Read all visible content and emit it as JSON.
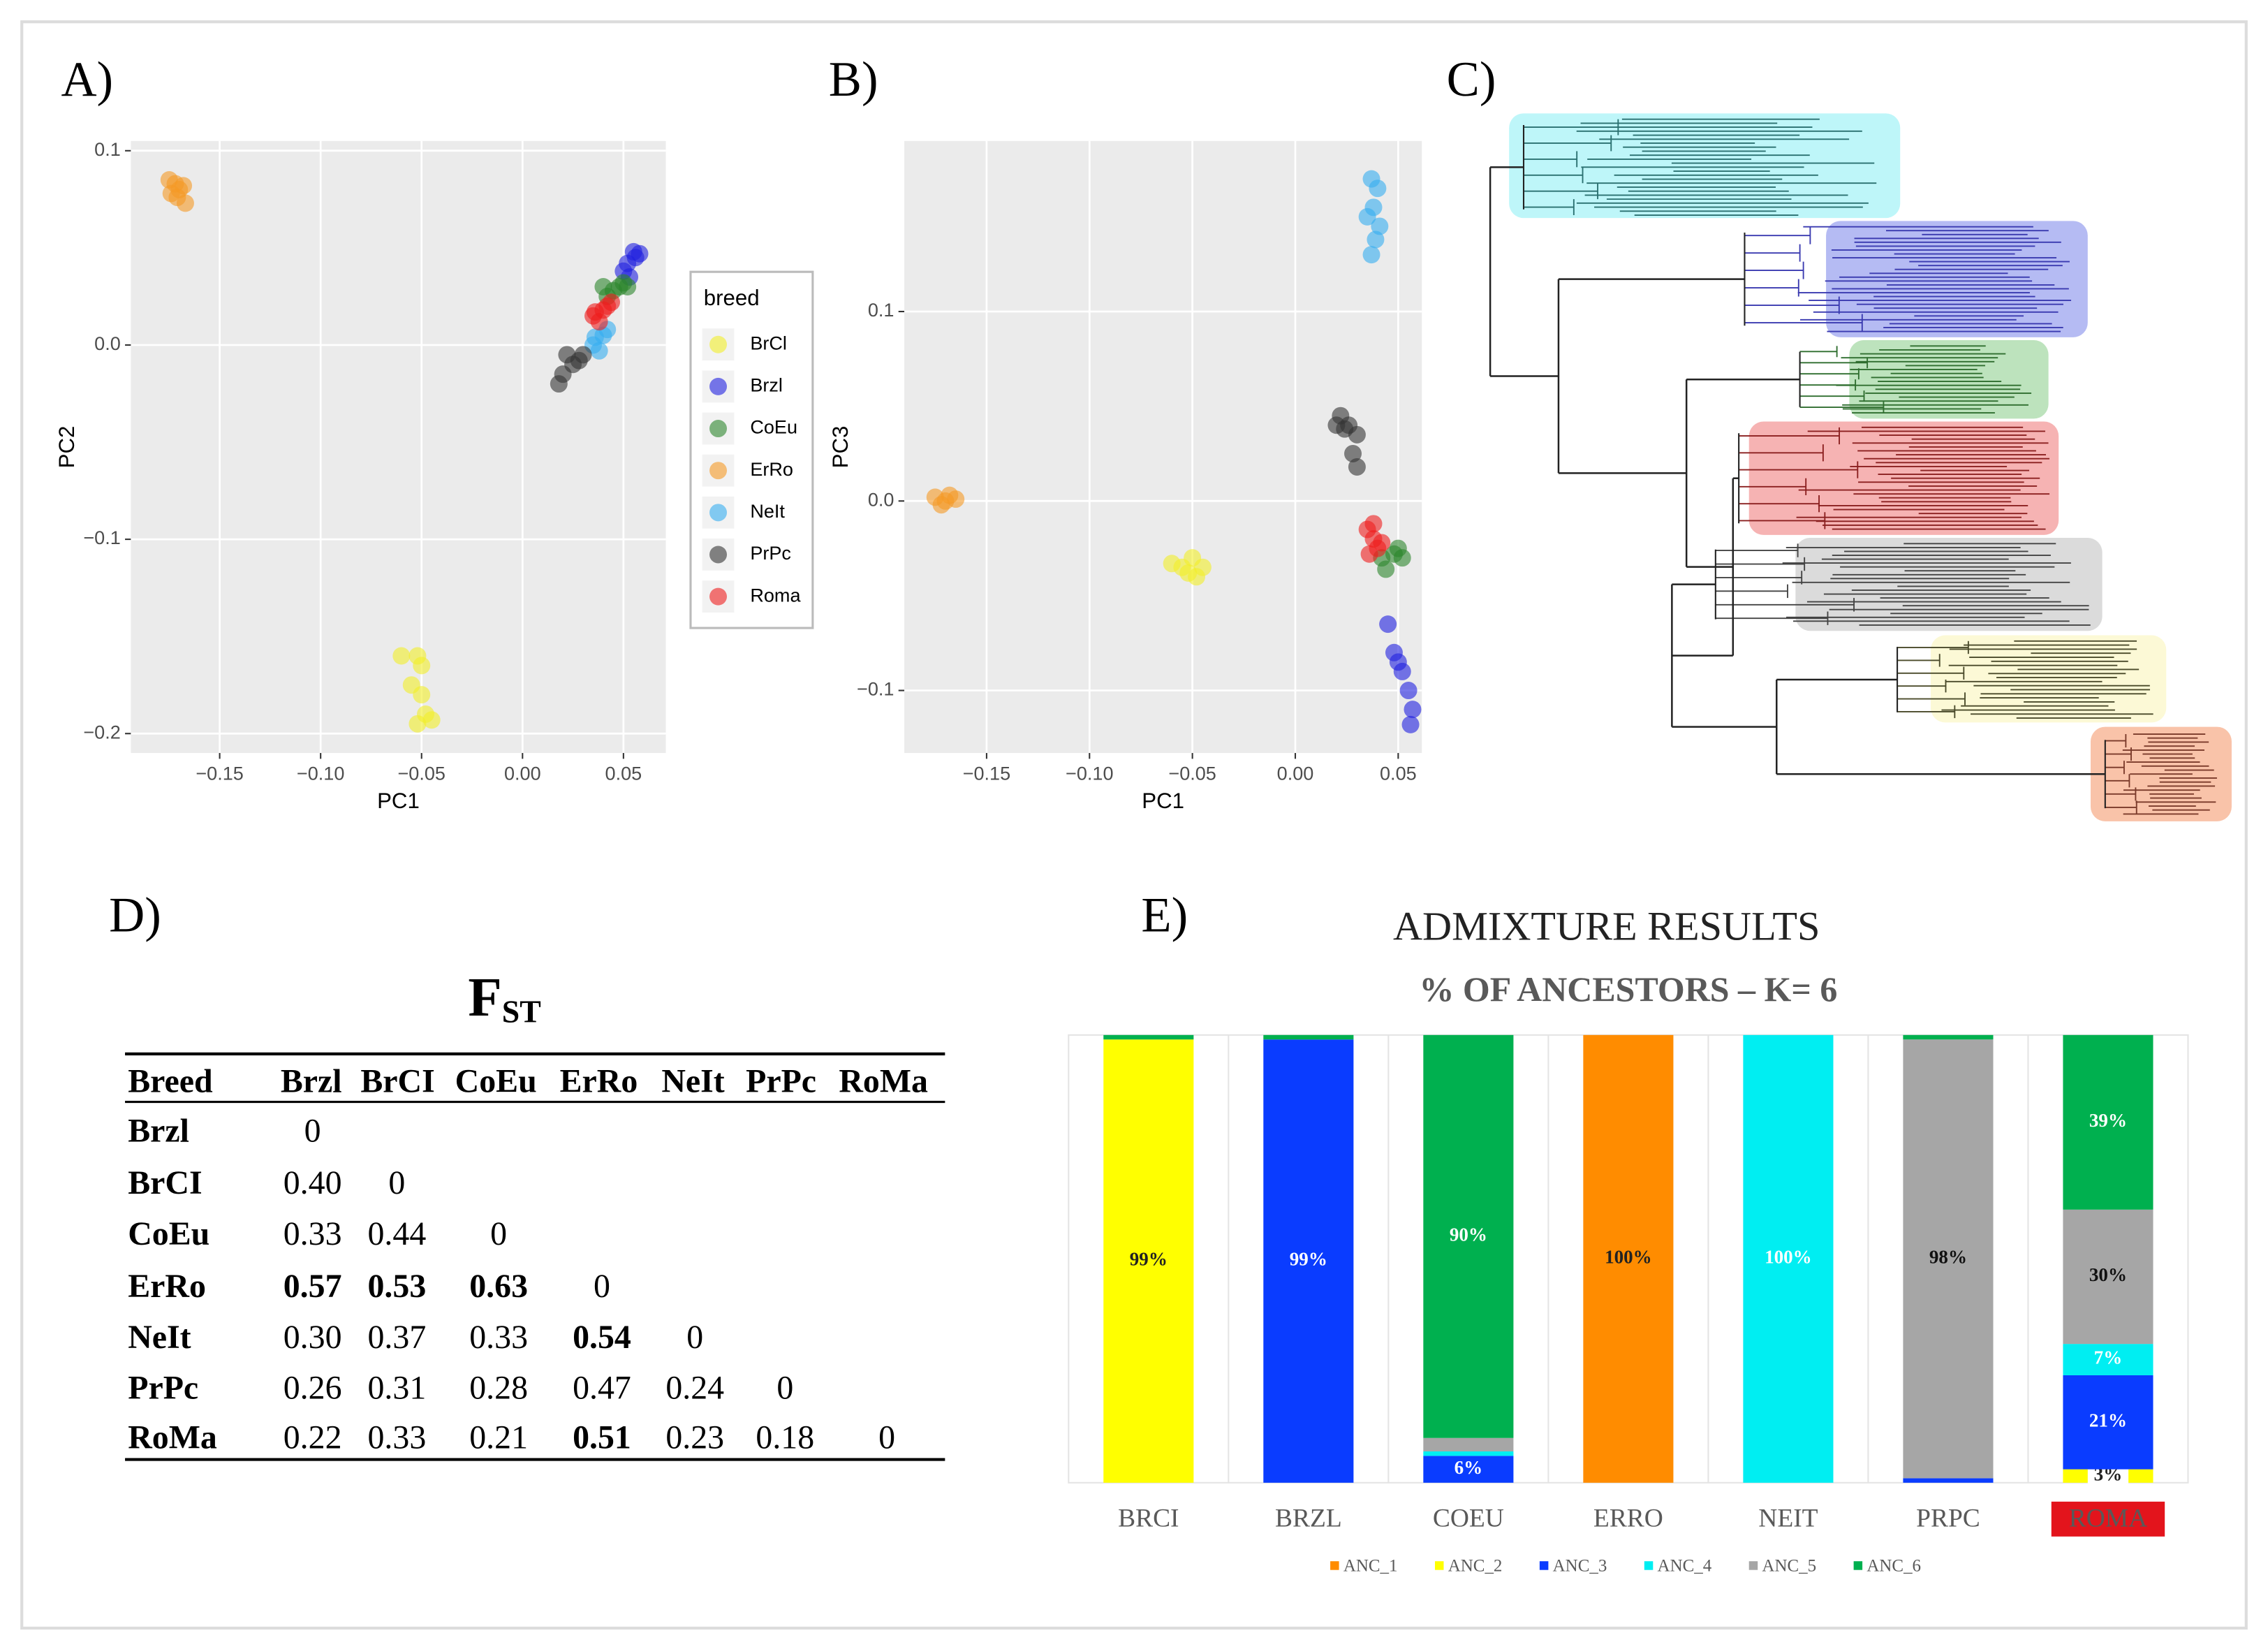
{
  "panel_labels": [
    "A)",
    "B)",
    "C)",
    "D)",
    "E)"
  ],
  "chart_data": [
    {
      "type": "scatter",
      "xlabel": "PC1",
      "ylabel": "PC2",
      "xlim": [
        -0.194,
        0.071
      ],
      "ylim": [
        -0.21,
        0.105
      ],
      "xticks": [
        {
          "value": -0.15,
          "label": "−0.15"
        },
        {
          "value": -0.1,
          "label": "−0.10"
        },
        {
          "value": -0.05,
          "label": "−0.05"
        },
        {
          "value": 0,
          "label": "0.00"
        },
        {
          "value": 0.05,
          "label": "0.05"
        }
      ],
      "yticks": [
        0.1,
        {
          "value": 0,
          "label": "0.0"
        },
        {
          "value": -0.1,
          "label": "−0.1"
        },
        {
          "value": -0.2,
          "label": "−0.2"
        }
      ],
      "grid": true,
      "legend": true,
      "legend_title": "breed",
      "series": [
        {
          "name": "BrCl",
          "color": "#f2ef2a",
          "x": [
            -0.052,
            -0.05,
            -0.055,
            -0.05,
            -0.048,
            -0.045,
            -0.052,
            -0.06
          ],
          "y": [
            -0.16,
            -0.165,
            -0.175,
            -0.18,
            -0.19,
            -0.193,
            -0.195,
            -0.16
          ]
        },
        {
          "name": "Brzl",
          "color": "#1f1fe0",
          "x": [
            0.055,
            0.052,
            0.056,
            0.05,
            0.058,
            0.053
          ],
          "y": [
            0.048,
            0.042,
            0.045,
            0.038,
            0.047,
            0.035
          ]
        },
        {
          "name": "CoEu",
          "color": "#2b852b",
          "x": [
            0.04,
            0.045,
            0.05,
            0.042,
            0.048,
            0.052
          ],
          "y": [
            0.03,
            0.028,
            0.032,
            0.025,
            0.03,
            0.03
          ]
        },
        {
          "name": "ErRo",
          "color": "#f59a25",
          "x": [
            -0.175,
            -0.172,
            -0.17,
            -0.174,
            -0.168,
            -0.171,
            -0.167
          ],
          "y": [
            0.085,
            0.083,
            0.08,
            0.078,
            0.082,
            0.076,
            0.073
          ]
        },
        {
          "name": "NeIt",
          "color": "#35aef0",
          "x": [
            0.035,
            0.04,
            0.038,
            0.042,
            0.036
          ],
          "y": [
            0.0,
            0.005,
            -0.003,
            0.008,
            0.004
          ]
        },
        {
          "name": "PrPc",
          "color": "#333333",
          "x": [
            0.02,
            0.025,
            0.03,
            0.018,
            0.022,
            0.028
          ],
          "y": [
            -0.015,
            -0.01,
            -0.005,
            -0.02,
            -0.005,
            -0.008
          ]
        },
        {
          "name": "Roma",
          "color": "#ee1c1c",
          "x": [
            0.035,
            0.04,
            0.038,
            0.042,
            0.036,
            0.044
          ],
          "y": [
            0.015,
            0.018,
            0.012,
            0.02,
            0.017,
            0.022
          ]
        }
      ]
    },
    {
      "type": "scatter",
      "xlabel": "PC1",
      "ylabel": "PC3",
      "xlim": [
        -0.19,
        0.0615
      ],
      "ylim": [
        -0.133,
        0.19
      ],
      "xticks": [
        {
          "value": -0.15,
          "label": "−0.15"
        },
        {
          "value": -0.1,
          "label": "−0.10"
        },
        {
          "value": -0.05,
          "label": "−0.05"
        },
        {
          "value": 0,
          "label": "0.00"
        },
        {
          "value": 0.05,
          "label": "0.05"
        }
      ],
      "yticks": [
        0.1,
        {
          "value": 0,
          "label": "0.0"
        },
        {
          "value": -0.1,
          "label": "−0.1"
        }
      ],
      "grid": true,
      "legend": false,
      "series": [
        {
          "color": "#f2ef2a",
          "x": [
            -0.05,
            -0.055,
            -0.048,
            -0.052,
            -0.045,
            -0.06
          ],
          "y": [
            -0.03,
            -0.035,
            -0.04,
            -0.038,
            -0.035,
            -0.033
          ]
        },
        {
          "color": "#1f1fe0",
          "x": [
            0.045,
            0.048,
            0.052,
            0.055,
            0.057,
            0.05,
            0.056
          ],
          "y": [
            -0.065,
            -0.08,
            -0.09,
            -0.1,
            -0.11,
            -0.085,
            -0.118
          ]
        },
        {
          "color": "#2b852b",
          "x": [
            0.042,
            0.048,
            0.052,
            0.044,
            0.05
          ],
          "y": [
            -0.03,
            -0.028,
            -0.03,
            -0.036,
            -0.025
          ]
        },
        {
          "color": "#f59a25",
          "x": [
            -0.175,
            -0.17,
            -0.168,
            -0.172,
            -0.165
          ],
          "y": [
            0.002,
            0.0,
            0.003,
            -0.002,
            0.001
          ]
        },
        {
          "color": "#35aef0",
          "x": [
            0.037,
            0.04,
            0.038,
            0.035,
            0.041,
            0.037,
            0.039
          ],
          "y": [
            0.17,
            0.165,
            0.155,
            0.15,
            0.145,
            0.13,
            0.138
          ]
        },
        {
          "color": "#333333",
          "x": [
            0.022,
            0.026,
            0.03,
            0.024,
            0.028,
            0.03,
            0.02
          ],
          "y": [
            0.045,
            0.04,
            0.035,
            0.038,
            0.025,
            0.018,
            0.04
          ]
        },
        {
          "color": "#ee1c1c",
          "x": [
            0.035,
            0.038,
            0.04,
            0.036,
            0.042,
            0.038
          ],
          "y": [
            -0.015,
            -0.02,
            -0.025,
            -0.028,
            -0.022,
            -0.012
          ]
        }
      ]
    },
    {
      "type": "stacked_bar",
      "title": "ADMIXTURE RESULTS",
      "subtitle": "% OF ANCESTORS – K= 6",
      "categories": [
        "BRCI",
        "BRZL",
        "COEU",
        "ERRO",
        "NEIT",
        "PRPC",
        "ROMA"
      ],
      "category_label_bg": [
        null,
        null,
        null,
        null,
        null,
        null,
        "#e3141c"
      ],
      "ylim": [
        0,
        100
      ],
      "series": [
        {
          "name": "ANC_1",
          "color": "#ff8c00",
          "values": [
            0,
            0,
            0,
            100,
            0,
            0,
            0
          ],
          "value_labels": [
            null,
            null,
            null,
            "100%",
            null,
            null,
            null
          ]
        },
        {
          "name": "ANC_2",
          "color": "#ffff00",
          "values": [
            99,
            0,
            0,
            0,
            0,
            0,
            3
          ],
          "value_labels": [
            "99%",
            null,
            null,
            null,
            null,
            null,
            "3%"
          ]
        },
        {
          "name": "ANC_3",
          "color": "#0a3cff",
          "values": [
            0,
            99,
            6,
            0,
            0,
            1,
            21
          ],
          "value_labels": [
            null,
            "99%",
            "6%",
            null,
            null,
            null,
            "21%"
          ]
        },
        {
          "name": "ANC_4",
          "color": "#00eef2",
          "values": [
            0,
            0,
            1,
            0,
            100,
            0,
            7
          ],
          "value_labels": [
            null,
            null,
            null,
            null,
            "100%",
            null,
            "7%"
          ]
        },
        {
          "name": "ANC_5",
          "color": "#a6a6a6",
          "values": [
            0,
            0,
            3,
            0,
            0,
            98,
            30
          ],
          "value_labels": [
            null,
            null,
            null,
            null,
            null,
            "98%",
            "30%"
          ]
        },
        {
          "name": "ANC_6",
          "color": "#00b04f",
          "values": [
            1,
            1,
            90,
            0,
            0,
            1,
            39
          ],
          "value_labels": [
            null,
            null,
            "90%",
            null,
            null,
            null,
            "39%"
          ]
        }
      ]
    }
  ],
  "table": {
    "title": "F",
    "title_subscript": "ST",
    "header": [
      "Breed",
      "Brzl",
      "BrCI",
      "CoEu",
      "ErRo",
      "NeIt",
      "PrPc",
      "RoMa"
    ],
    "rows": [
      [
        "Brzl",
        "0"
      ],
      [
        "BrCI",
        "0.40",
        "0"
      ],
      [
        "CoEu",
        "0.33",
        "0.44",
        "0"
      ],
      [
        "ErRo",
        "0.57",
        "0.53",
        "0.63",
        "0"
      ],
      [
        "NeIt",
        "0.30",
        "0.37",
        "0.33",
        "0.54",
        "0"
      ],
      [
        "PrPc",
        "0.26",
        "0.31",
        "0.28",
        "0.47",
        "0.24",
        "0"
      ],
      [
        "RoMa",
        "0.22",
        "0.33",
        "0.21",
        "0.51",
        "0.23",
        "0.18",
        "0"
      ]
    ],
    "bold_cells": [
      [
        3,
        1
      ],
      [
        3,
        2
      ],
      [
        3,
        3
      ],
      [
        4,
        4
      ],
      [
        6,
        4
      ]
    ]
  }
}
